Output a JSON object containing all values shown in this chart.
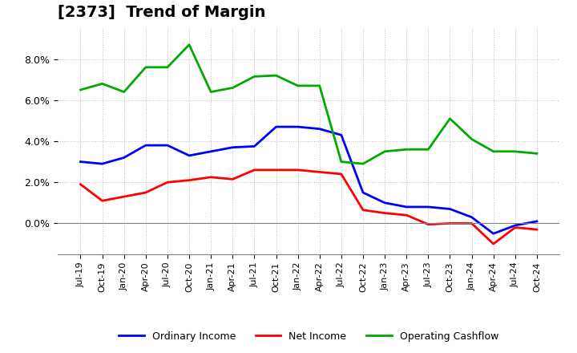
{
  "title": "[2373]  Trend of Margin",
  "x_labels": [
    "Jul-19",
    "Oct-19",
    "Jan-20",
    "Apr-20",
    "Jul-20",
    "Oct-20",
    "Jan-21",
    "Apr-21",
    "Jul-21",
    "Oct-21",
    "Jan-22",
    "Apr-22",
    "Jul-22",
    "Oct-22",
    "Jan-23",
    "Apr-23",
    "Jul-23",
    "Oct-23",
    "Jan-24",
    "Apr-24",
    "Jul-24",
    "Oct-24"
  ],
  "ordinary_income": [
    3.0,
    2.9,
    3.2,
    3.8,
    3.8,
    3.3,
    3.5,
    3.7,
    3.75,
    4.7,
    4.7,
    4.6,
    4.3,
    1.5,
    1.0,
    0.8,
    0.8,
    0.7,
    0.3,
    -0.5,
    -0.1,
    0.1
  ],
  "net_income": [
    1.9,
    1.1,
    1.3,
    1.5,
    2.0,
    2.1,
    2.25,
    2.15,
    2.6,
    2.6,
    2.6,
    2.5,
    2.4,
    0.65,
    0.5,
    0.4,
    -0.05,
    0.0,
    0.0,
    -1.0,
    -0.2,
    -0.3
  ],
  "operating_cashflow": [
    6.5,
    6.8,
    6.4,
    7.6,
    7.6,
    8.7,
    6.4,
    6.6,
    7.15,
    7.2,
    6.7,
    6.7,
    3.0,
    2.9,
    3.5,
    3.6,
    3.6,
    5.1,
    4.1,
    3.5,
    3.5,
    3.4
  ],
  "ylim": [
    -1.5,
    9.5
  ],
  "yticks": [
    0.0,
    2.0,
    4.0,
    6.0,
    8.0
  ],
  "line_colors": {
    "ordinary_income": "#0000ff",
    "net_income": "#ff0000",
    "operating_cashflow": "#00aa00"
  },
  "legend_labels": [
    "Ordinary Income",
    "Net Income",
    "Operating Cashflow"
  ],
  "background_color": "#ffffff",
  "grid_color": "#aaaaaa"
}
